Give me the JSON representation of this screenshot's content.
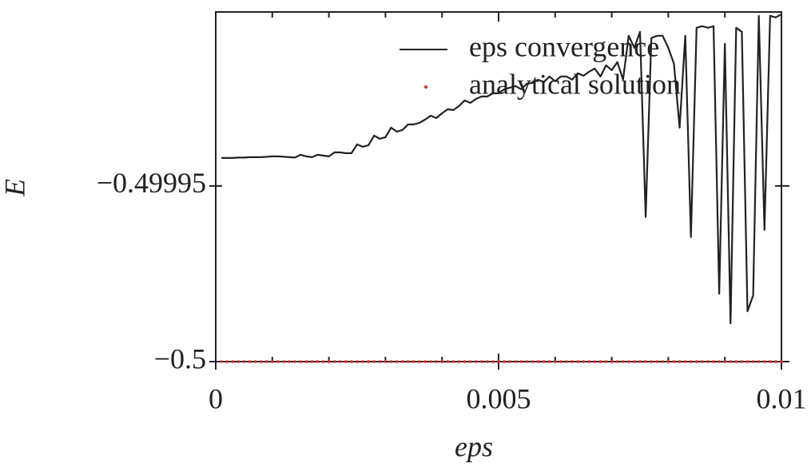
{
  "chart_data": {
    "type": "line",
    "xlabel": "eps",
    "ylabel": "E",
    "x": [
      0.0001,
      0.0002,
      0.0003,
      0.0004,
      0.0005,
      0.0006,
      0.0007,
      0.0008,
      0.0009,
      0.001,
      0.0011,
      0.0012,
      0.0013,
      0.0014,
      0.0015,
      0.0016,
      0.0017,
      0.0018,
      0.0019,
      0.002,
      0.0021,
      0.0022,
      0.0023,
      0.0024,
      0.0025,
      0.0026,
      0.0027,
      0.0028,
      0.0029,
      0.003,
      0.0031,
      0.0032,
      0.0033,
      0.0034,
      0.0035,
      0.0036,
      0.0037,
      0.0038,
      0.0039,
      0.004,
      0.0041,
      0.0042,
      0.0043,
      0.0044,
      0.0045,
      0.0046,
      0.0047,
      0.0048,
      0.0049,
      0.005,
      0.0051,
      0.0052,
      0.0053,
      0.0054,
      0.0055,
      0.0056,
      0.0057,
      0.0058,
      0.0059,
      0.006,
      0.0061,
      0.0062,
      0.0063,
      0.0064,
      0.0065,
      0.0066,
      0.0067,
      0.0068,
      0.0069,
      0.007,
      0.0071,
      0.0072,
      0.0073,
      0.0074,
      0.0075,
      0.0076,
      0.0077,
      0.0078,
      0.0079,
      0.008,
      0.0081,
      0.0082,
      0.0083,
      0.0084,
      0.0085,
      0.0086,
      0.0087,
      0.0088,
      0.0089,
      0.009,
      0.0091,
      0.0092,
      0.0093,
      0.0094,
      0.0095,
      0.0096,
      0.0097,
      0.0098,
      0.0099,
      0.01
    ],
    "series": [
      {
        "name": "eps convergence",
        "style": "line",
        "color": "#222222",
        "values": [
          -0.49994205,
          -0.49994205,
          -0.49994205,
          -0.49994193,
          -0.49994193,
          -0.49994182,
          -0.49994182,
          -0.49994182,
          -0.4999417,
          -0.49994159,
          -0.49994159,
          -0.4999417,
          -0.49994182,
          -0.49994193,
          -0.49994114,
          -0.49994159,
          -0.49994182,
          -0.49994114,
          -0.49994136,
          -0.49994159,
          -0.49994045,
          -0.49994045,
          -0.49994068,
          -0.49994068,
          -0.49993818,
          -0.49993886,
          -0.49993841,
          -0.49993568,
          -0.49993659,
          -0.49993614,
          -0.49993341,
          -0.49993455,
          -0.49993409,
          -0.4999325,
          -0.4999325,
          -0.49993205,
          -0.49993114,
          -0.49993,
          -0.49993068,
          -0.49992932,
          -0.49992818,
          -0.49992841,
          -0.49992727,
          -0.49992568,
          -0.49992636,
          -0.49992523,
          -0.49992455,
          -0.49992455,
          -0.49992364,
          -0.49992364,
          -0.4999225,
          -0.49992205,
          -0.49992159,
          -0.4999225,
          -0.49992091,
          -0.49992068,
          -0.49991977,
          -0.49992045,
          -0.49991886,
          -0.49992023,
          -0.49991886,
          -0.49991886,
          -0.49991977,
          -0.49991795,
          -0.49991864,
          -0.4999175,
          -0.49991659,
          -0.49991886,
          -0.49991568,
          -0.49991705,
          -0.49991477,
          -0.49991977,
          -0.49990727,
          -0.49991068,
          -0.49990614,
          -0.49995886,
          -0.49990795,
          -0.49990727,
          -0.49990727,
          -0.49991068,
          -0.49991523,
          -0.49993341,
          -0.49990727,
          -0.49996455,
          -0.499905,
          -0.49990455,
          -0.499905,
          -0.49990455,
          -0.49998068,
          -0.49990955,
          -0.49998909,
          -0.499905,
          -0.49990614,
          -0.49998568,
          -0.49998114,
          -0.49990159,
          -0.4999625,
          -0.49990159,
          -0.49990205,
          -0.49990114
        ]
      },
      {
        "name": "analytical solution",
        "style": "dots",
        "color": "#d62728",
        "values": [
          -0.5,
          -0.5,
          -0.5,
          -0.5,
          -0.5,
          -0.5,
          -0.5,
          -0.5,
          -0.5,
          -0.5,
          -0.5,
          -0.5,
          -0.5,
          -0.5,
          -0.5,
          -0.5,
          -0.5,
          -0.5,
          -0.5,
          -0.5,
          -0.5,
          -0.5,
          -0.5,
          -0.5,
          -0.5,
          -0.5,
          -0.5,
          -0.5,
          -0.5,
          -0.5,
          -0.5,
          -0.5,
          -0.5,
          -0.5,
          -0.5,
          -0.5,
          -0.5,
          -0.5,
          -0.5,
          -0.5,
          -0.5,
          -0.5,
          -0.5,
          -0.5,
          -0.5,
          -0.5,
          -0.5,
          -0.5,
          -0.5,
          -0.5,
          -0.5,
          -0.5,
          -0.5,
          -0.5,
          -0.5,
          -0.5,
          -0.5,
          -0.5,
          -0.5,
          -0.5,
          -0.5,
          -0.5,
          -0.5,
          -0.5,
          -0.5,
          -0.5,
          -0.5,
          -0.5,
          -0.5,
          -0.5,
          -0.5,
          -0.5,
          -0.5,
          -0.5,
          -0.5,
          -0.5,
          -0.5,
          -0.5,
          -0.5,
          -0.5,
          -0.5,
          -0.5,
          -0.5,
          -0.5,
          -0.5,
          -0.5,
          -0.5,
          -0.5,
          -0.5,
          -0.5,
          -0.5,
          -0.5,
          -0.5,
          -0.5,
          -0.5,
          -0.5,
          -0.5,
          -0.5,
          -0.5,
          -0.5
        ]
      }
    ],
    "xlim": [
      0,
      0.01
    ],
    "xticks": [
      0,
      0.005,
      0.01
    ],
    "xminorticks": [
      0.001,
      0.002,
      0.003,
      0.004,
      0.006,
      0.007,
      0.008,
      0.009
    ],
    "ylim": [
      -0.5,
      -0.4999005
    ],
    "yticks": [
      {
        "value": -0.5,
        "label": "−0.5"
      },
      {
        "value": -0.49995,
        "label": "−0.49995"
      }
    ],
    "legend": "upper right",
    "grid": false
  }
}
